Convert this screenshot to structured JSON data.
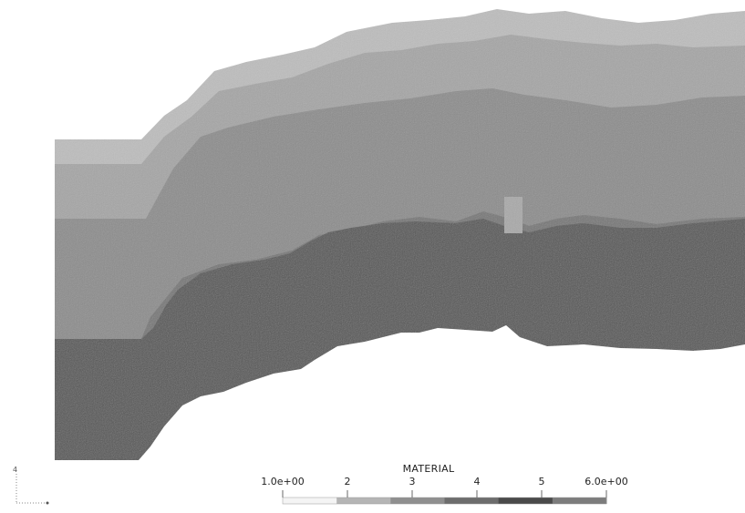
{
  "legend": {
    "title": "MATERIAL",
    "min_label": "1.0e+00",
    "max_label": "6.0e+00",
    "tick_labels": [
      "2",
      "3",
      "4",
      "5"
    ],
    "min_value": 1,
    "max_value": 6,
    "colors": [
      "#f4f4f4",
      "#b5b5b5",
      "#8f8f8f",
      "#6d6d6d",
      "#4a4a4a",
      "#7c7c7c"
    ]
  },
  "layers": [
    {
      "material": 2,
      "color": "#bdbdbd"
    },
    {
      "material": 3,
      "color": "#a4a4a4"
    },
    {
      "material": 4,
      "color": "#8a8a8a"
    },
    {
      "material": 5,
      "color": "#747474"
    },
    {
      "material": 6,
      "color": "#515151"
    }
  ],
  "axes_triad": {
    "vertical_label": "4"
  }
}
